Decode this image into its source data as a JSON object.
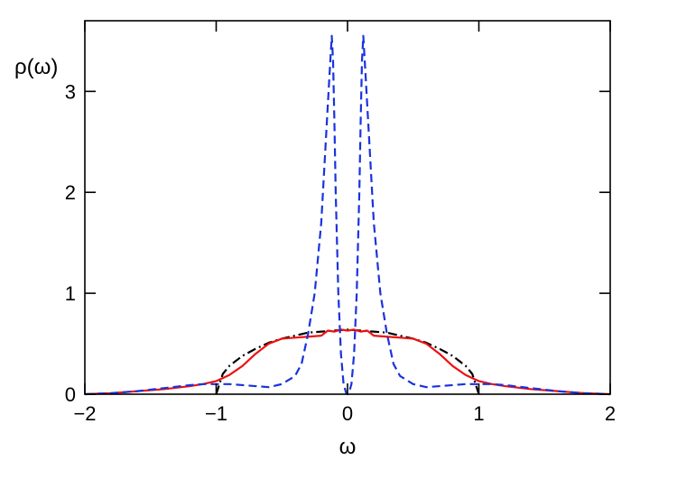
{
  "chart_data": {
    "type": "line",
    "xlabel": "ω",
    "ylabel": "ρ(ω)",
    "xlim": [
      -2,
      2
    ],
    "ylim": [
      0,
      3.7
    ],
    "xticks": [
      -2,
      -1,
      0,
      1,
      2
    ],
    "xtick_labels": [
      "−2",
      "−1",
      "0",
      "1",
      "2"
    ],
    "yticks": [
      0,
      1,
      2,
      3
    ],
    "ytick_labels": [
      "0",
      "1",
      "2",
      "3"
    ],
    "grid": false,
    "legend": "none",
    "series": [
      {
        "style": "dash-dot",
        "color": "#000000",
        "x": [
          -1.0,
          -0.95,
          -0.9,
          -0.8,
          -0.7,
          -0.6,
          -0.5,
          -0.4,
          -0.3,
          -0.2,
          -0.1,
          0.0,
          0.1,
          0.2,
          0.3,
          0.4,
          0.5,
          0.6,
          0.7,
          0.8,
          0.9,
          0.95,
          1.0
        ],
        "y": [
          0.0,
          0.2,
          0.28,
          0.38,
          0.45,
          0.51,
          0.55,
          0.58,
          0.61,
          0.62,
          0.63,
          0.64,
          0.63,
          0.62,
          0.61,
          0.58,
          0.55,
          0.51,
          0.45,
          0.38,
          0.28,
          0.2,
          0.0
        ]
      },
      {
        "style": "solid",
        "color": "#ee1111",
        "x": [
          -2.0,
          -1.8,
          -1.6,
          -1.4,
          -1.2,
          -1.1,
          -1.0,
          -0.9,
          -0.8,
          -0.7,
          -0.6,
          -0.5,
          -0.4,
          -0.3,
          -0.2,
          -0.15,
          -0.1,
          -0.05,
          0.0,
          0.05,
          0.1,
          0.15,
          0.2,
          0.3,
          0.4,
          0.5,
          0.6,
          0.7,
          0.8,
          0.9,
          1.0,
          1.1,
          1.2,
          1.4,
          1.6,
          1.8,
          2.0
        ],
        "y": [
          0.0,
          0.01,
          0.03,
          0.05,
          0.08,
          0.1,
          0.13,
          0.19,
          0.28,
          0.4,
          0.5,
          0.55,
          0.56,
          0.57,
          0.58,
          0.63,
          0.62,
          0.64,
          0.63,
          0.64,
          0.62,
          0.63,
          0.58,
          0.57,
          0.56,
          0.55,
          0.5,
          0.4,
          0.28,
          0.19,
          0.13,
          0.1,
          0.08,
          0.05,
          0.03,
          0.01,
          0.0
        ]
      },
      {
        "style": "dashed",
        "color": "#1a33dd",
        "x": [
          -2.0,
          -1.8,
          -1.6,
          -1.4,
          -1.2,
          -1.1,
          -1.0,
          -0.9,
          -0.8,
          -0.7,
          -0.6,
          -0.5,
          -0.4,
          -0.35,
          -0.3,
          -0.25,
          -0.2,
          -0.17,
          -0.14,
          -0.12,
          -0.11,
          -0.1,
          -0.09,
          -0.07,
          -0.05,
          -0.03,
          -0.01,
          0.0,
          0.01,
          0.03,
          0.05,
          0.07,
          0.09,
          0.1,
          0.11,
          0.12,
          0.14,
          0.17,
          0.2,
          0.25,
          0.3,
          0.35,
          0.4,
          0.5,
          0.6,
          0.7,
          0.8,
          0.9,
          1.0,
          1.1,
          1.2,
          1.4,
          1.6,
          1.8,
          2.0
        ],
        "y": [
          0.0,
          0.01,
          0.03,
          0.06,
          0.09,
          0.1,
          0.1,
          0.1,
          0.09,
          0.08,
          0.07,
          0.1,
          0.18,
          0.3,
          0.6,
          1.0,
          1.7,
          2.4,
          3.1,
          3.55,
          3.3,
          2.7,
          2.0,
          1.0,
          0.4,
          0.1,
          0.01,
          0.0,
          0.01,
          0.1,
          0.4,
          1.0,
          2.0,
          2.7,
          3.3,
          3.55,
          3.1,
          2.4,
          1.7,
          1.0,
          0.6,
          0.3,
          0.18,
          0.1,
          0.07,
          0.08,
          0.09,
          0.1,
          0.1,
          0.1,
          0.09,
          0.06,
          0.03,
          0.01,
          0.0
        ]
      }
    ]
  }
}
